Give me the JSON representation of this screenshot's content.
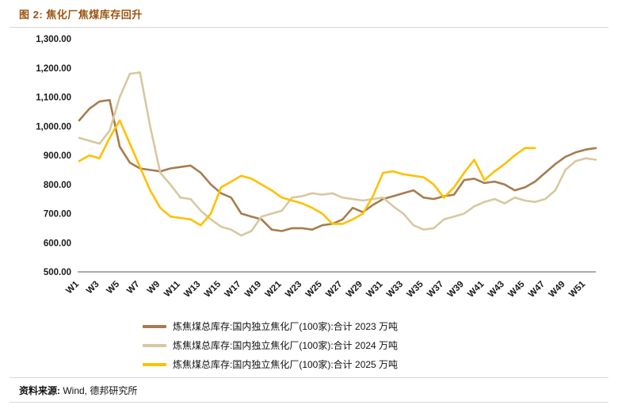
{
  "header": {
    "title": "图 2: 焦化厂焦煤库存回升"
  },
  "footer": {
    "source_label": "资料来源:",
    "source_text": "Wind, 德邦研究所"
  },
  "colors": {
    "title": "#9c5410",
    "s2023": "#a67c4e",
    "s2024": "#d8c8a0",
    "s2025": "#ffc000",
    "axis": "#595959"
  },
  "chart_data": {
    "type": "line",
    "title": "图 2: 焦化厂焦煤库存回升",
    "xlabel": "",
    "ylabel": "",
    "ylim": [
      500,
      1300
    ],
    "grid": false,
    "legend_position": "bottom",
    "categories": [
      "W1",
      "W2",
      "W3",
      "W4",
      "W5",
      "W6",
      "W7",
      "W8",
      "W9",
      "W10",
      "W11",
      "W12",
      "W13",
      "W14",
      "W15",
      "W16",
      "W17",
      "W18",
      "W19",
      "W20",
      "W21",
      "W22",
      "W23",
      "W24",
      "W25",
      "W26",
      "W27",
      "W28",
      "W29",
      "W30",
      "W31",
      "W32",
      "W33",
      "W34",
      "W35",
      "W36",
      "W37",
      "W38",
      "W39",
      "W40",
      "W41",
      "W42",
      "W43",
      "W44",
      "W45",
      "W46",
      "W47",
      "W48",
      "W49",
      "W50",
      "W51",
      "W52"
    ],
    "x_tick_labels": [
      "W1",
      "W3",
      "W5",
      "W7",
      "W9",
      "W11",
      "W13",
      "W15",
      "W17",
      "W19",
      "W21",
      "W23",
      "W25",
      "W27",
      "W29",
      "W31",
      "W33",
      "W35",
      "W37",
      "W39",
      "W41",
      "W43",
      "W45",
      "W47",
      "W49",
      "W51"
    ],
    "y_ticks": [
      500,
      600,
      700,
      800,
      900,
      1000,
      1100,
      1200,
      1300
    ],
    "y_tick_labels": [
      "500.00",
      "600.00",
      "700.00",
      "800.00",
      "900.00",
      "1,000.00",
      "1,100.00",
      "1,200.00",
      "1,300.00"
    ],
    "series": [
      {
        "name": "炼焦煤总库存:国内独立焦化厂(100家):合计 2023 万吨",
        "color": "#a67c4e",
        "values": [
          1020,
          1060,
          1085,
          1090,
          930,
          875,
          855,
          850,
          845,
          855,
          860,
          865,
          840,
          800,
          770,
          755,
          700,
          690,
          680,
          645,
          640,
          650,
          650,
          645,
          660,
          665,
          680,
          720,
          705,
          730,
          750,
          760,
          770,
          780,
          755,
          750,
          760,
          765,
          815,
          820,
          805,
          810,
          800,
          780,
          790,
          810,
          840,
          870,
          895,
          910,
          920,
          925
        ]
      },
      {
        "name": "炼焦煤总库存:国内独立焦化厂(100家):合计 2024 万吨",
        "color": "#d8c8a0",
        "values": [
          960,
          950,
          940,
          985,
          1100,
          1180,
          1185,
          1000,
          840,
          800,
          755,
          750,
          710,
          680,
          655,
          645,
          625,
          640,
          690,
          700,
          710,
          755,
          760,
          770,
          765,
          770,
          755,
          750,
          745,
          750,
          755,
          725,
          700,
          660,
          645,
          650,
          680,
          690,
          700,
          725,
          740,
          750,
          735,
          755,
          745,
          740,
          750,
          780,
          850,
          880,
          890,
          885
        ]
      },
      {
        "name": "炼焦煤总库存:国内独立焦化厂(100家):合计 2025 万吨",
        "color": "#ffc000",
        "values": [
          880,
          900,
          890,
          960,
          1020,
          940,
          860,
          780,
          720,
          690,
          685,
          680,
          660,
          700,
          790,
          810,
          830,
          820,
          800,
          780,
          755,
          745,
          735,
          720,
          700,
          665,
          665,
          680,
          700,
          760,
          840,
          845,
          835,
          830,
          825,
          800,
          755,
          790,
          840,
          885,
          815,
          845,
          870,
          900,
          925,
          925,
          null,
          null,
          null,
          null,
          null,
          null
        ]
      }
    ]
  }
}
